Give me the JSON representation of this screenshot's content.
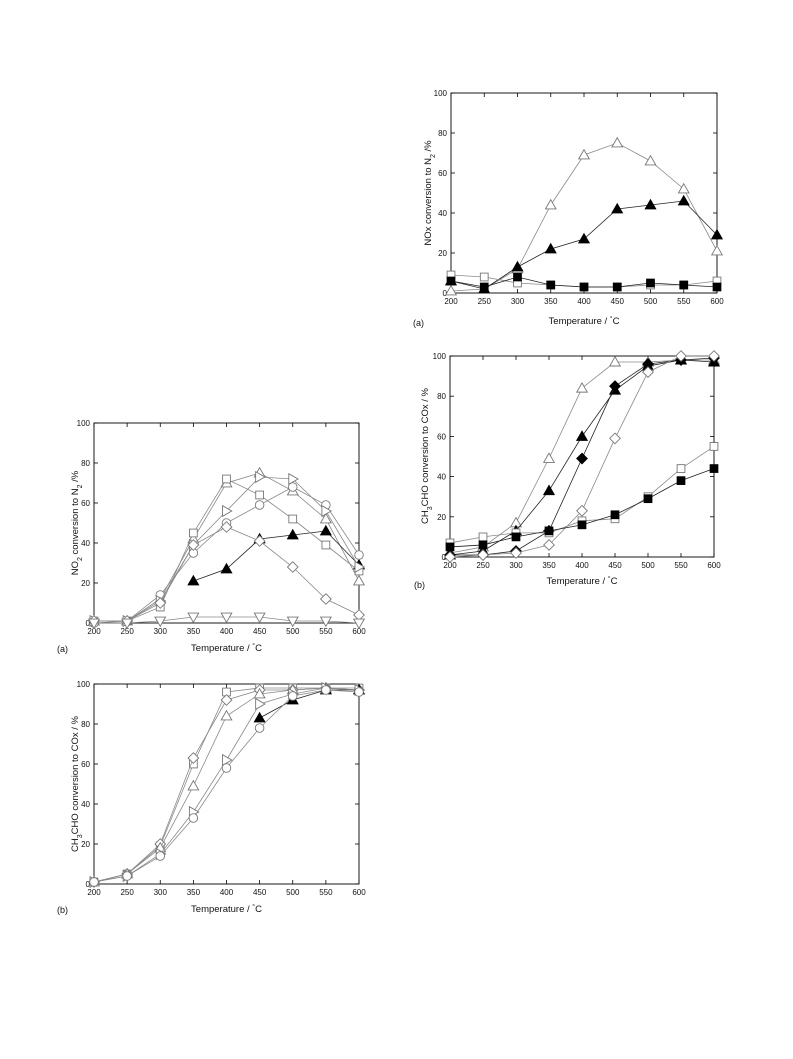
{
  "chart_data": [
    {
      "id": "top-right-a",
      "type": "line",
      "panel_letter": "(a)",
      "xlabel": [
        "Temperature / ",
        "°",
        "C"
      ],
      "ylabel": [
        "NOx conversion to N",
        "2",
        " /%"
      ],
      "xlim": [
        200,
        600
      ],
      "ylim": [
        0,
        100
      ],
      "xticks": [
        200,
        250,
        300,
        350,
        400,
        450,
        500,
        550,
        600
      ],
      "yticks": [
        0,
        20,
        40,
        60,
        80,
        100
      ],
      "grid": false,
      "series": [
        {
          "marker": "triangle-up",
          "fill": "#ffffff",
          "stroke": "#777777",
          "x": [
            200,
            250,
            300,
            350,
            400,
            450,
            500,
            550,
            600
          ],
          "y": [
            1,
            2,
            12,
            44,
            69,
            75,
            66,
            52,
            21
          ]
        },
        {
          "marker": "triangle-up",
          "fill": "#000000",
          "stroke": "#000000",
          "x": [
            200,
            250,
            300,
            350,
            400,
            450,
            500,
            550,
            600
          ],
          "y": [
            6,
            2,
            13,
            22,
            27,
            42,
            44,
            46,
            29
          ]
        },
        {
          "marker": "square",
          "fill": "#ffffff",
          "stroke": "#777777",
          "x": [
            200,
            250,
            300,
            350,
            400,
            450,
            500,
            550,
            600
          ],
          "y": [
            9,
            8,
            5,
            4,
            3,
            3,
            4,
            4,
            6
          ]
        },
        {
          "marker": "square",
          "fill": "#000000",
          "stroke": "#000000",
          "x": [
            200,
            250,
            300,
            350,
            400,
            450,
            500,
            550,
            600
          ],
          "y": [
            6,
            3,
            8,
            4,
            3,
            3,
            5,
            4,
            3
          ]
        }
      ]
    },
    {
      "id": "middle-right-b",
      "type": "line",
      "panel_letter": "(b)",
      "xlabel": [
        "Temperature / ",
        "°",
        "C"
      ],
      "ylabel": [
        "CH",
        "3",
        "CHO conversion to COx / %"
      ],
      "xlim": [
        200,
        600
      ],
      "ylim": [
        0,
        100
      ],
      "xticks": [
        200,
        250,
        300,
        350,
        400,
        450,
        500,
        550,
        600
      ],
      "yticks": [
        0,
        20,
        40,
        60,
        80,
        100
      ],
      "grid": false,
      "series": [
        {
          "marker": "triangle-up",
          "fill": "#ffffff",
          "stroke": "#777777",
          "x": [
            200,
            250,
            300,
            350,
            400,
            450,
            500,
            550,
            600
          ],
          "y": [
            2,
            5,
            17,
            49,
            84,
            97,
            97,
            98,
            98
          ]
        },
        {
          "marker": "triangle-up",
          "fill": "#000000",
          "stroke": "#000000",
          "x": [
            200,
            250,
            300,
            350,
            400,
            450,
            500,
            550,
            600
          ],
          "y": [
            1,
            3,
            13,
            33,
            60,
            83,
            95,
            98,
            97
          ]
        },
        {
          "marker": "diamond",
          "fill": "#000000",
          "stroke": "#000000",
          "x": [
            200,
            250,
            300,
            350,
            400,
            450,
            500,
            550,
            600
          ],
          "y": [
            1,
            1,
            3,
            13,
            49,
            85,
            96,
            98,
            99
          ]
        },
        {
          "marker": "diamond",
          "fill": "#ffffff",
          "stroke": "#777777",
          "x": [
            200,
            250,
            300,
            350,
            400,
            450,
            500,
            550,
            600
          ],
          "y": [
            0,
            1,
            2,
            6,
            23,
            59,
            92,
            100,
            100
          ]
        },
        {
          "marker": "square",
          "fill": "#ffffff",
          "stroke": "#777777",
          "x": [
            200,
            250,
            300,
            350,
            400,
            450,
            500,
            550,
            600
          ],
          "y": [
            7,
            10,
            12,
            12,
            18,
            19,
            30,
            44,
            55
          ]
        },
        {
          "marker": "square",
          "fill": "#000000",
          "stroke": "#000000",
          "x": [
            200,
            250,
            300,
            350,
            400,
            450,
            500,
            550,
            600
          ],
          "y": [
            5,
            6,
            10,
            13,
            16,
            21,
            29,
            38,
            44
          ]
        }
      ]
    },
    {
      "id": "middle-left-a",
      "type": "line",
      "panel_letter": "(a)",
      "xlabel": [
        "Temperature / ",
        "°",
        "C"
      ],
      "ylabel": [
        "NO",
        "2",
        " conversion to N",
        "2",
        " /%"
      ],
      "xlim": [
        200,
        600
      ],
      "ylim": [
        0,
        100
      ],
      "xticks": [
        200,
        250,
        300,
        350,
        400,
        450,
        500,
        550,
        600
      ],
      "yticks": [
        0,
        20,
        40,
        60,
        80,
        100
      ],
      "grid": false,
      "series": [
        {
          "marker": "triangle-up",
          "fill": "#ffffff",
          "stroke": "#777777",
          "x": [
            200,
            250,
            300,
            350,
            400,
            450,
            500,
            550,
            600
          ],
          "y": [
            1,
            1,
            12,
            42,
            70,
            75,
            66,
            52,
            21
          ]
        },
        {
          "marker": "triangle-up",
          "fill": "#000000",
          "stroke": "#000000",
          "x": [
            350,
            400,
            450,
            500,
            550,
            600
          ],
          "y": [
            21,
            27,
            42,
            44,
            46,
            29
          ]
        },
        {
          "marker": "square",
          "fill": "#ffffff",
          "stroke": "#777777",
          "x": [
            200,
            250,
            300,
            350,
            400,
            450,
            500,
            550,
            600
          ],
          "y": [
            1,
            1,
            8,
            45,
            72,
            64,
            52,
            39,
            26
          ]
        },
        {
          "marker": "circle",
          "fill": "#ffffff",
          "stroke": "#777777",
          "x": [
            200,
            250,
            300,
            350,
            400,
            450,
            500,
            550,
            600
          ],
          "y": [
            0,
            1,
            14,
            35,
            50,
            59,
            68,
            59,
            34
          ]
        },
        {
          "marker": "triangle-right",
          "fill": "#ffffff",
          "stroke": "#777777",
          "x": [
            200,
            250,
            300,
            350,
            400,
            450,
            500,
            550,
            600
          ],
          "y": [
            1,
            1,
            11,
            39,
            56,
            73,
            72,
            56,
            28
          ]
        },
        {
          "marker": "diamond",
          "fill": "#ffffff",
          "stroke": "#777777",
          "x": [
            200,
            250,
            300,
            350,
            400,
            450,
            500,
            550,
            600
          ],
          "y": [
            1,
            1,
            10,
            39,
            48,
            41,
            28,
            12,
            4
          ]
        },
        {
          "marker": "triangle-down",
          "fill": "#ffffff",
          "stroke": "#777777",
          "x": [
            200,
            250,
            300,
            350,
            400,
            450,
            500,
            550,
            600
          ],
          "y": [
            0,
            0,
            1,
            3,
            3,
            3,
            1,
            1,
            0
          ]
        }
      ]
    },
    {
      "id": "bottom-left-b",
      "type": "line",
      "panel_letter": "(b)",
      "xlabel": [
        "Temperature / ",
        "°",
        "C"
      ],
      "ylabel": [
        "CH",
        "3",
        "CHO conversion to COx / %"
      ],
      "xlim": [
        200,
        600
      ],
      "ylim": [
        0,
        100
      ],
      "xticks": [
        200,
        250,
        300,
        350,
        400,
        450,
        500,
        550,
        600
      ],
      "yticks": [
        0,
        20,
        40,
        60,
        80,
        100
      ],
      "grid": false,
      "series": [
        {
          "marker": "square",
          "fill": "#ffffff",
          "stroke": "#777777",
          "x": [
            200,
            250,
            300,
            350,
            400,
            450,
            500,
            550,
            600
          ],
          "y": [
            1,
            5,
            19,
            60,
            96,
            98,
            98,
            98,
            98
          ]
        },
        {
          "marker": "diamond",
          "fill": "#ffffff",
          "stroke": "#777777",
          "x": [
            200,
            250,
            300,
            350,
            400,
            450,
            500,
            550,
            600
          ],
          "y": [
            1,
            5,
            20,
            63,
            92,
            97,
            97,
            98,
            97
          ]
        },
        {
          "marker": "triangle-up",
          "fill": "#ffffff",
          "stroke": "#777777",
          "x": [
            200,
            250,
            300,
            350,
            400,
            450,
            500,
            550,
            600
          ],
          "y": [
            1,
            5,
            18,
            49,
            84,
            95,
            97,
            98,
            97
          ]
        },
        {
          "marker": "triangle-up",
          "fill": "#000000",
          "stroke": "#000000",
          "x": [
            450,
            500,
            550,
            600
          ],
          "y": [
            83,
            92,
            97,
            97
          ]
        },
        {
          "marker": "triangle-right",
          "fill": "#ffffff",
          "stroke": "#777777",
          "x": [
            200,
            250,
            300,
            350,
            400,
            450,
            500,
            550,
            600
          ],
          "y": [
            1,
            4,
            15,
            36,
            62,
            90,
            95,
            98,
            97
          ]
        },
        {
          "marker": "circle",
          "fill": "#ffffff",
          "stroke": "#777777",
          "x": [
            200,
            250,
            300,
            350,
            400,
            450,
            500,
            550,
            600
          ],
          "y": [
            1,
            4,
            14,
            33,
            58,
            78,
            94,
            97,
            96
          ]
        }
      ]
    }
  ]
}
